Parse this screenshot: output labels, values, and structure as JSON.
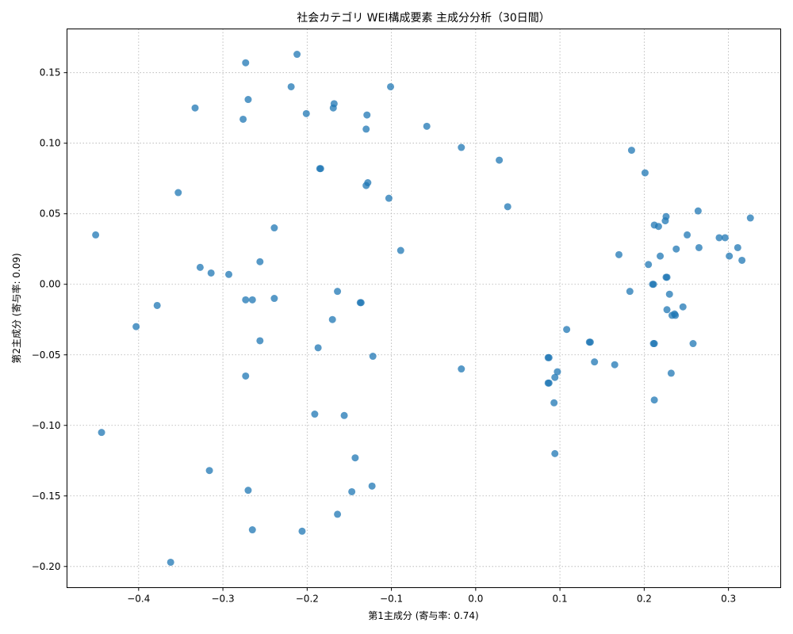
{
  "chart_data": {
    "type": "scatter",
    "title": "社会カテゴリ WEI構成要素 主成分分析（30日間）",
    "xlabel": "第1主成分 (寄与率: 0.74)",
    "ylabel": "第2主成分 (寄与率: 0.09)",
    "xlim": [
      -0.485,
      0.362
    ],
    "ylim": [
      -0.215,
      0.181
    ],
    "xticks": [
      -0.4,
      -0.3,
      -0.2,
      -0.1,
      0.0,
      0.1,
      0.2,
      0.3
    ],
    "xtick_labels": [
      "−0.4",
      "−0.3",
      "−0.2",
      "−0.1",
      "0.0",
      "0.1",
      "0.2",
      "0.3"
    ],
    "yticks": [
      -0.2,
      -0.15,
      -0.1,
      -0.05,
      0.0,
      0.05,
      0.1,
      0.15
    ],
    "ytick_labels": [
      "−0.20",
      "−0.15",
      "−0.10",
      "−0.05",
      "0.00",
      "0.05",
      "0.10",
      "0.15"
    ],
    "grid": true,
    "color": "#1f77b4",
    "points": [
      [
        -0.212,
        0.163
      ],
      [
        -0.273,
        0.157
      ],
      [
        -0.219,
        0.14
      ],
      [
        -0.101,
        0.14
      ],
      [
        -0.27,
        0.131
      ],
      [
        -0.168,
        0.128
      ],
      [
        -0.333,
        0.125
      ],
      [
        -0.169,
        0.125
      ],
      [
        -0.201,
        0.121
      ],
      [
        -0.129,
        0.12
      ],
      [
        -0.276,
        0.117
      ],
      [
        -0.058,
        0.112
      ],
      [
        -0.13,
        0.11
      ],
      [
        -0.017,
        0.097
      ],
      [
        0.028,
        0.088
      ],
      [
        -0.184,
        0.082
      ],
      [
        -0.185,
        0.082
      ],
      [
        -0.128,
        0.072
      ],
      [
        -0.13,
        0.07
      ],
      [
        -0.353,
        0.065
      ],
      [
        -0.103,
        0.061
      ],
      [
        0.038,
        0.055
      ],
      [
        -0.451,
        0.035
      ],
      [
        -0.239,
        0.04
      ],
      [
        -0.089,
        0.024
      ],
      [
        -0.256,
        0.016
      ],
      [
        -0.327,
        0.012
      ],
      [
        -0.314,
        0.008
      ],
      [
        -0.293,
        0.007
      ],
      [
        -0.164,
        -0.005
      ],
      [
        -0.273,
        -0.011
      ],
      [
        -0.265,
        -0.011
      ],
      [
        -0.239,
        -0.01
      ],
      [
        -0.378,
        -0.015
      ],
      [
        -0.137,
        -0.013
      ],
      [
        -0.136,
        -0.013
      ],
      [
        -0.17,
        -0.025
      ],
      [
        -0.403,
        -0.03
      ],
      [
        -0.256,
        -0.04
      ],
      [
        -0.187,
        -0.045
      ],
      [
        -0.122,
        -0.051
      ],
      [
        -0.017,
        -0.06
      ],
      [
        -0.273,
        -0.065
      ],
      [
        -0.191,
        -0.092
      ],
      [
        -0.156,
        -0.093
      ],
      [
        -0.444,
        -0.105
      ],
      [
        -0.143,
        -0.123
      ],
      [
        -0.316,
        -0.132
      ],
      [
        -0.27,
        -0.146
      ],
      [
        -0.123,
        -0.143
      ],
      [
        -0.147,
        -0.147
      ],
      [
        -0.164,
        -0.163
      ],
      [
        -0.265,
        -0.174
      ],
      [
        -0.206,
        -0.175
      ],
      [
        -0.362,
        -0.197
      ],
      [
        0.185,
        0.095
      ],
      [
        0.201,
        0.079
      ],
      [
        0.264,
        0.052
      ],
      [
        0.226,
        0.048
      ],
      [
        0.225,
        0.045
      ],
      [
        0.326,
        0.047
      ],
      [
        0.212,
        0.042
      ],
      [
        0.217,
        0.041
      ],
      [
        0.251,
        0.035
      ],
      [
        0.289,
        0.033
      ],
      [
        0.296,
        0.033
      ],
      [
        0.311,
        0.026
      ],
      [
        0.265,
        0.026
      ],
      [
        0.238,
        0.025
      ],
      [
        0.17,
        0.021
      ],
      [
        0.219,
        0.02
      ],
      [
        0.301,
        0.02
      ],
      [
        0.316,
        0.017
      ],
      [
        0.205,
        0.014
      ],
      [
        0.226,
        0.005
      ],
      [
        0.227,
        0.005
      ],
      [
        0.21,
        0.0
      ],
      [
        0.211,
        0.0
      ],
      [
        0.183,
        -0.005
      ],
      [
        0.23,
        -0.007
      ],
      [
        0.246,
        -0.016
      ],
      [
        0.227,
        -0.018
      ],
      [
        0.233,
        -0.022
      ],
      [
        0.237,
        -0.022
      ],
      [
        0.236,
        -0.021
      ],
      [
        0.108,
        -0.032
      ],
      [
        0.135,
        -0.041
      ],
      [
        0.136,
        -0.041
      ],
      [
        0.211,
        -0.042
      ],
      [
        0.212,
        -0.042
      ],
      [
        0.258,
        -0.042
      ],
      [
        0.087,
        -0.052
      ],
      [
        0.086,
        -0.052
      ],
      [
        0.141,
        -0.055
      ],
      [
        0.165,
        -0.057
      ],
      [
        0.097,
        -0.062
      ],
      [
        0.094,
        -0.066
      ],
      [
        0.087,
        -0.07
      ],
      [
        0.086,
        -0.07
      ],
      [
        0.232,
        -0.063
      ],
      [
        0.093,
        -0.084
      ],
      [
        0.212,
        -0.082
      ],
      [
        0.094,
        -0.12
      ]
    ]
  }
}
